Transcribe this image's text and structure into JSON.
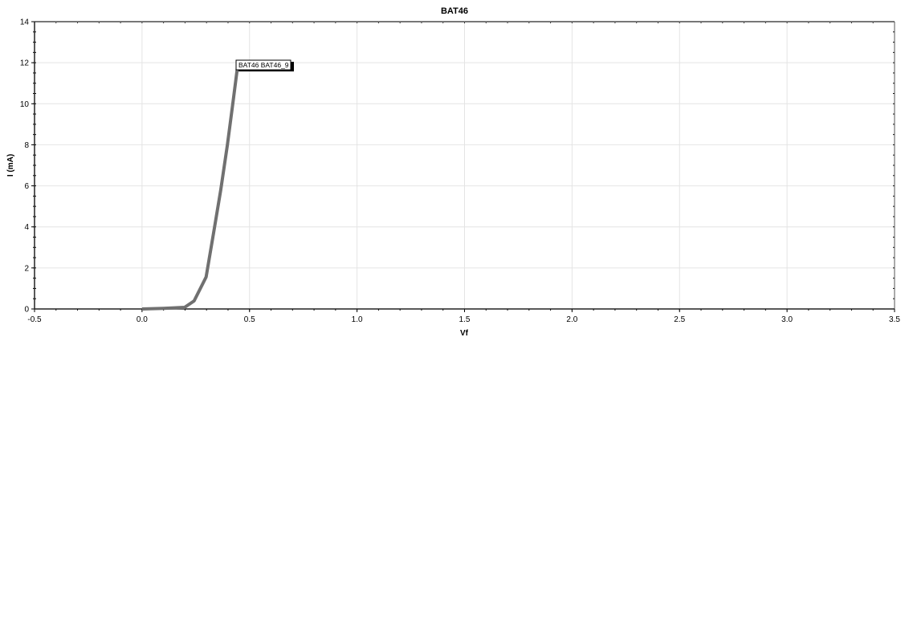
{
  "chart_data": {
    "type": "line",
    "title": "BAT46",
    "xlabel": "Vf",
    "ylabel": "I (mA)",
    "xlim": [
      -0.5,
      3.5
    ],
    "ylim": [
      0,
      14
    ],
    "xticks": [
      "-0.5",
      "0.0",
      "0.5",
      "1.0",
      "1.5",
      "2.0",
      "2.5",
      "3.0",
      "3.5"
    ],
    "yticks": [
      "0",
      "2",
      "4",
      "6",
      "8",
      "10",
      "12",
      "14"
    ],
    "grid": true,
    "series": [
      {
        "name": "BAT46 BAT46_9",
        "color": "#707070",
        "x": [
          0.0,
          0.1,
          0.198,
          0.242,
          0.298,
          0.335,
          0.366,
          0.397,
          0.422,
          0.444
        ],
        "y": [
          0.0,
          0.03,
          0.08,
          0.39,
          1.56,
          3.85,
          5.8,
          8.0,
          10.0,
          11.8
        ]
      }
    ],
    "annotation": "BAT46 BAT46_9"
  }
}
